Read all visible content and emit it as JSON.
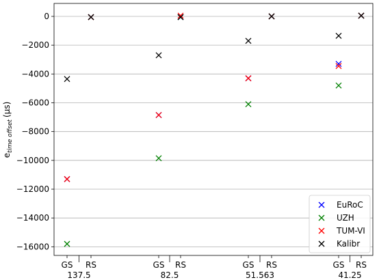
{
  "chart_data": {
    "type": "scatter",
    "title": "",
    "xlabel": "",
    "ylabel": "e",
    "ylabel_subscript": "time offset",
    "ylabel_unit": "(µs)",
    "ylim": [
      -16600,
      900
    ],
    "yticks": [
      0,
      -2000,
      -4000,
      -6000,
      -8000,
      -10000,
      -12000,
      -14000,
      -16000
    ],
    "ytick_labels": [
      "0",
      "−2000",
      "−4000",
      "−6000",
      "−8000",
      "−10000",
      "−12000",
      "−14000",
      "−16000"
    ],
    "grid": "horizontal",
    "legend_position": "bottom-right",
    "marker": "x",
    "groups": [
      {
        "label": "137.5",
        "subcategories": [
          "GS",
          "RS"
        ]
      },
      {
        "label": "82.5",
        "subcategories": [
          "GS",
          "RS"
        ]
      },
      {
        "label": "51.563",
        "subcategories": [
          "GS",
          "RS"
        ]
      },
      {
        "label": "41.25",
        "subcategories": [
          "GS",
          "RS"
        ]
      }
    ],
    "series": [
      {
        "name": "EuRoC",
        "color": "#0000ff",
        "values": [
          [
            -11300,
            -50
          ],
          [
            -6850,
            -50
          ],
          [
            -4300,
            0
          ],
          [
            -3300,
            50
          ]
        ]
      },
      {
        "name": "UZH",
        "color": "#008000",
        "values": [
          [
            -15800,
            -50
          ],
          [
            -9850,
            -50
          ],
          [
            -6100,
            0
          ],
          [
            -4800,
            50
          ]
        ]
      },
      {
        "name": "TUM-VI",
        "color": "#ff0000",
        "values": [
          [
            -11300,
            -50
          ],
          [
            -6850,
            50
          ],
          [
            -4300,
            0
          ],
          [
            -3450,
            50
          ]
        ]
      },
      {
        "name": "Kalibr",
        "color": "#000000",
        "values": [
          [
            -4350,
            -50
          ],
          [
            -2700,
            -50
          ],
          [
            -1700,
            0
          ],
          [
            -1350,
            50
          ]
        ]
      }
    ]
  }
}
